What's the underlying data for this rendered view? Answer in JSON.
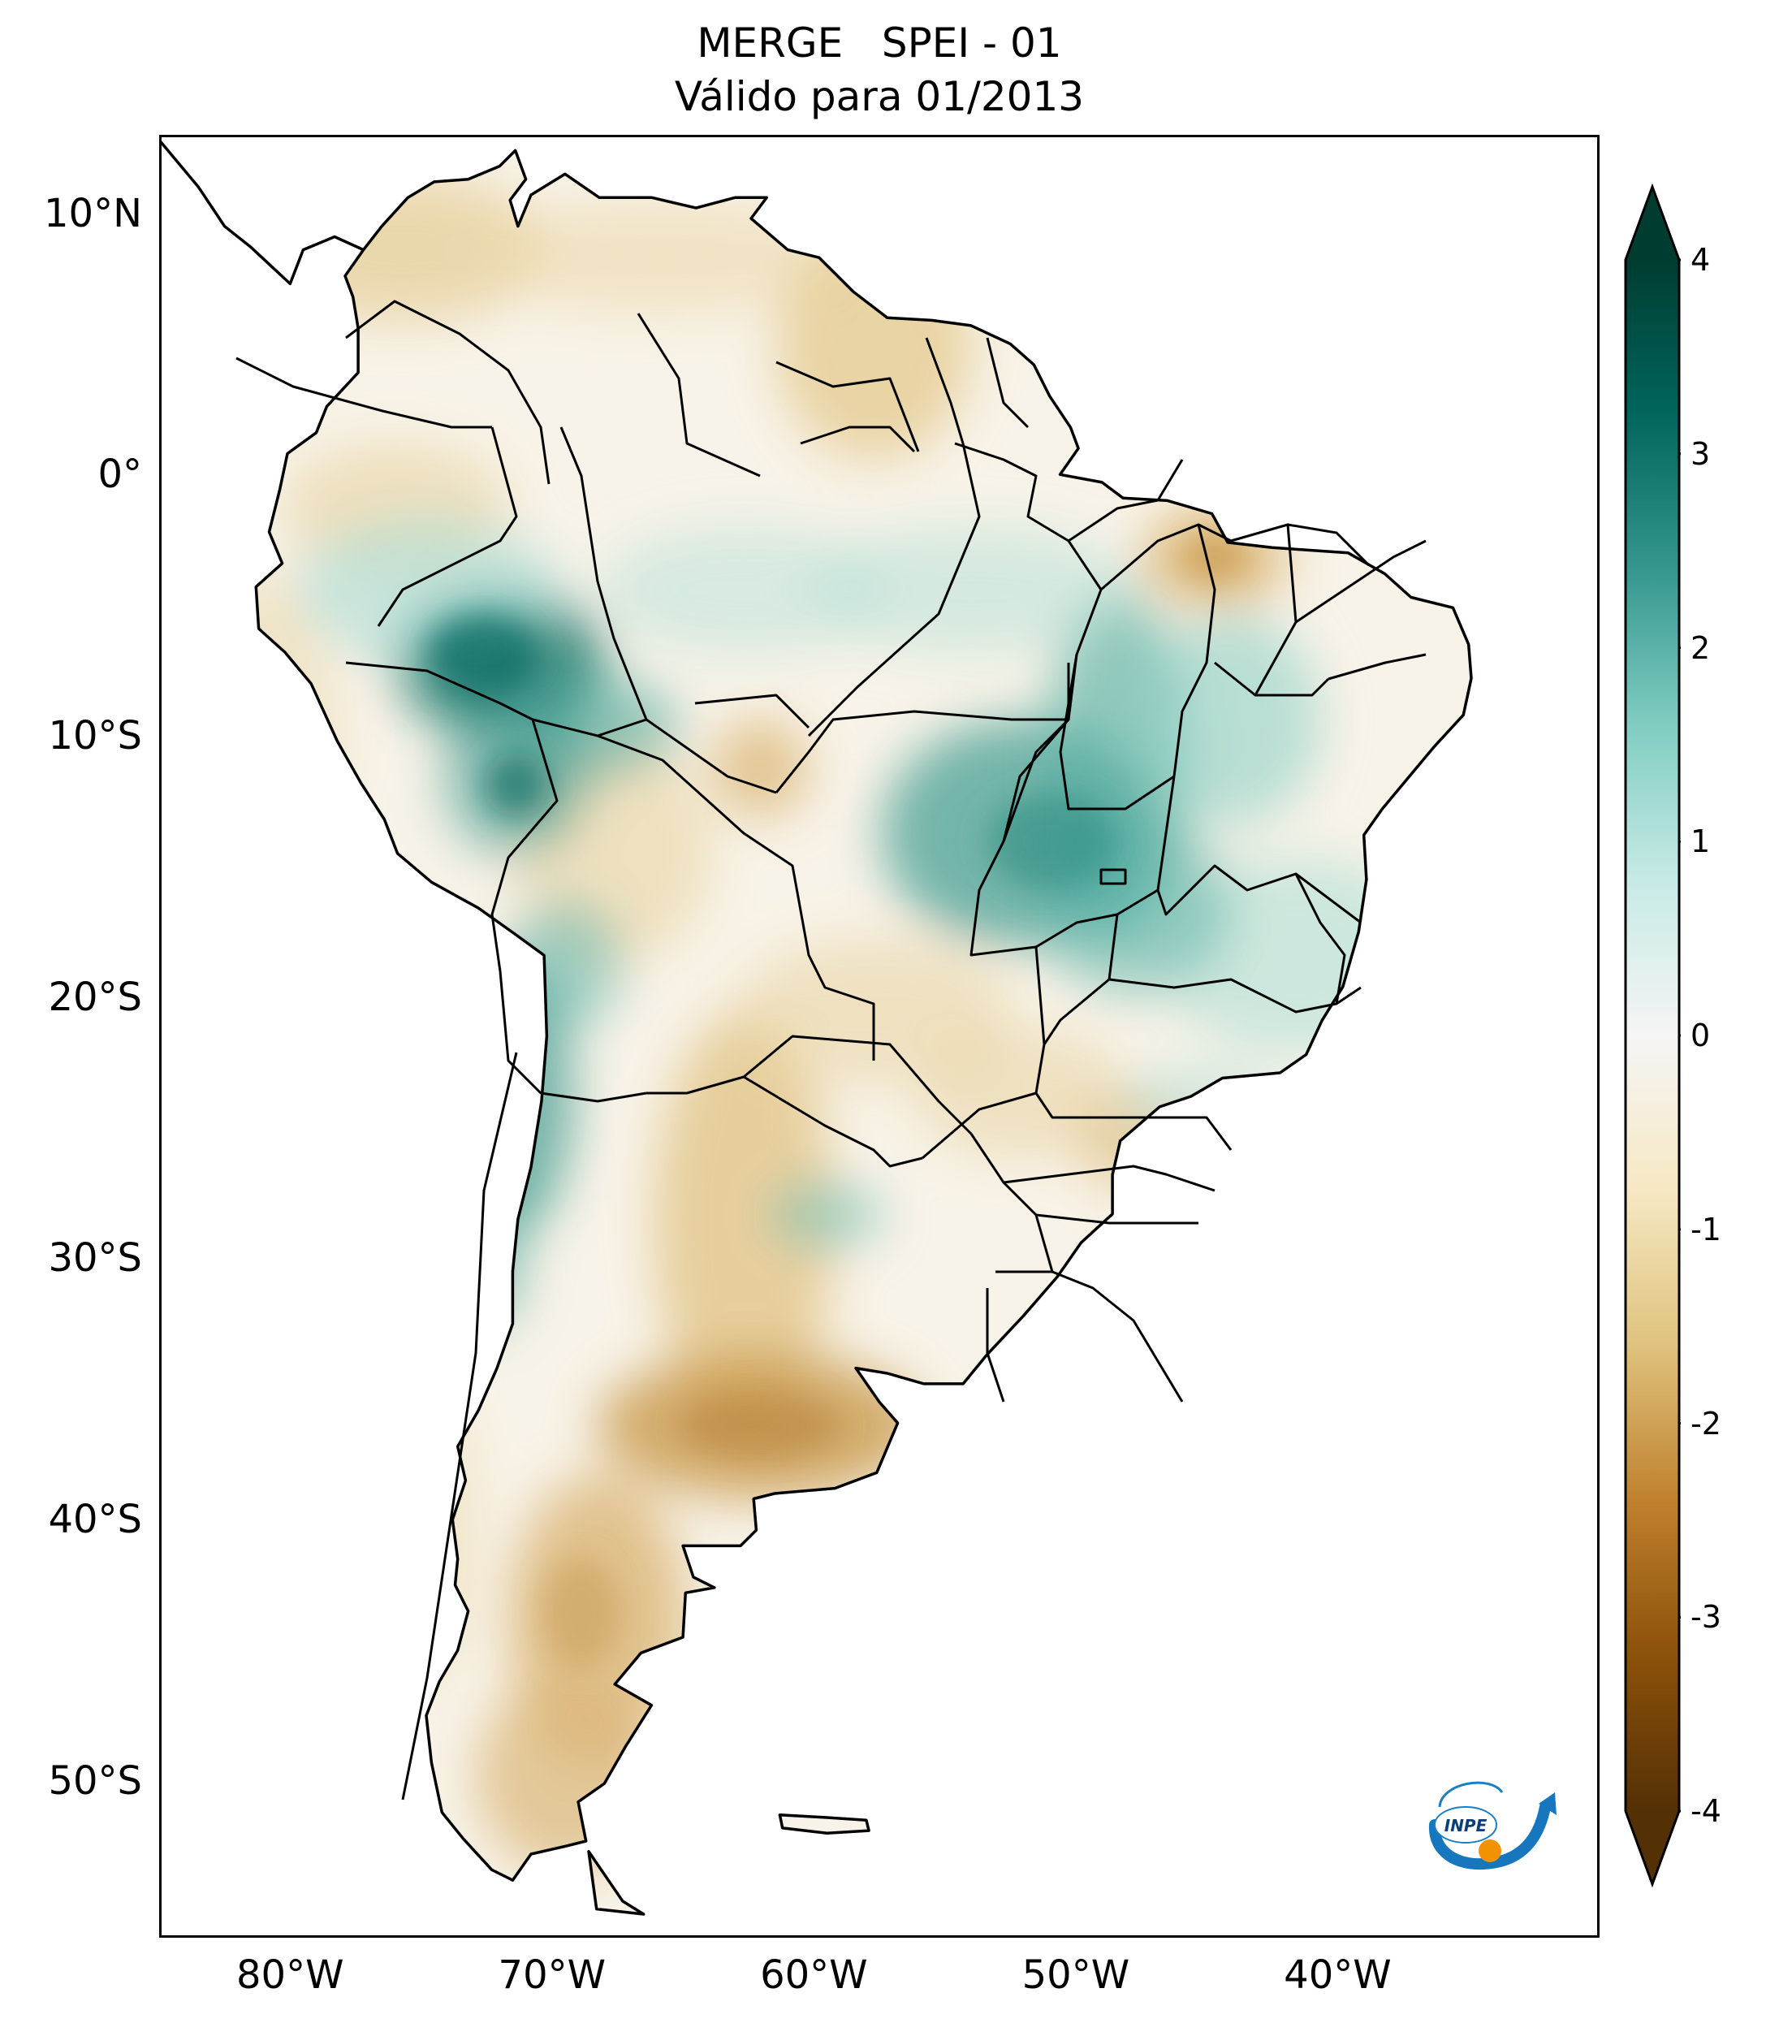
{
  "title": {
    "line1": "MERGE   SPEI - 01",
    "line2": "Válido para 01/2013"
  },
  "map": {
    "region": "South America",
    "lon_range": [
      -85,
      -30
    ],
    "lat_range": [
      -56,
      13
    ],
    "lat_ticks": [
      {
        "value": 10,
        "label": "10°N"
      },
      {
        "value": 0,
        "label": "0°"
      },
      {
        "value": -10,
        "label": "10°S"
      },
      {
        "value": -20,
        "label": "20°S"
      },
      {
        "value": -30,
        "label": "30°S"
      },
      {
        "value": -40,
        "label": "40°S"
      },
      {
        "value": -50,
        "label": "50°S"
      }
    ],
    "lon_ticks": [
      {
        "value": -80,
        "label": "80°W"
      },
      {
        "value": -70,
        "label": "70°W"
      },
      {
        "value": -60,
        "label": "60°W"
      },
      {
        "value": -50,
        "label": "50°W"
      },
      {
        "value": -40,
        "label": "40°W"
      }
    ]
  },
  "colorbar": {
    "min": -4,
    "max": 4,
    "extend": "both",
    "ticks": [
      {
        "value": 4,
        "label": "4"
      },
      {
        "value": 3,
        "label": "3"
      },
      {
        "value": 2,
        "label": "2"
      },
      {
        "value": 1,
        "label": "1"
      },
      {
        "value": 0,
        "label": "0"
      },
      {
        "value": -1,
        "label": "-1"
      },
      {
        "value": -2,
        "label": "-2"
      },
      {
        "value": -3,
        "label": "-3"
      },
      {
        "value": -4,
        "label": "-4"
      }
    ],
    "colors": {
      "dry_extreme": "#543005",
      "dry_strong": "#8c510a",
      "dry_moderate": "#bf812d",
      "dry_mild": "#dfc27d",
      "dry_light": "#f6e8c3",
      "neutral": "#f5f5f5",
      "wet_light": "#c7eae5",
      "wet_mild": "#80cdc1",
      "wet_moderate": "#35978f",
      "wet_strong": "#01665e",
      "wet_extreme": "#003c30"
    }
  },
  "logo": {
    "text": "INPE"
  }
}
